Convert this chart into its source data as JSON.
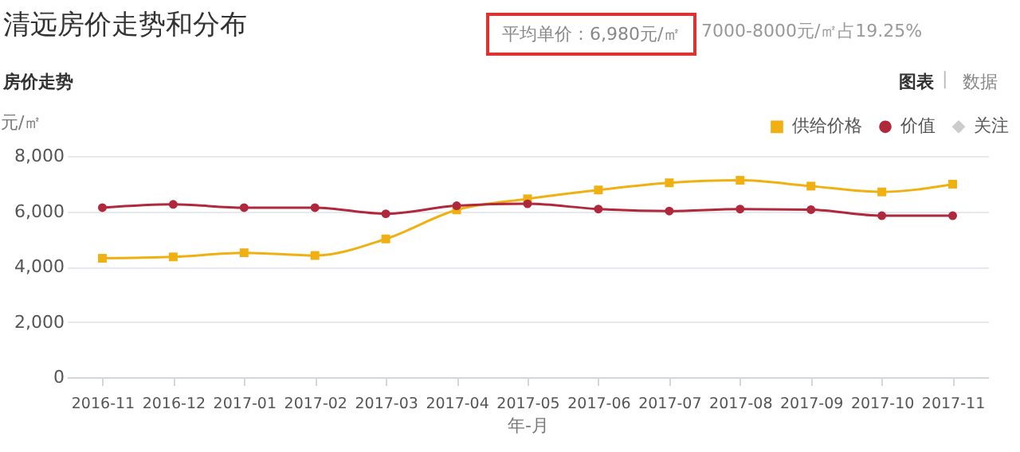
{
  "chart_data": {
    "type": "line",
    "title": "清远房价走势和分布",
    "annotations": [
      "平均单价：6,980元/㎡",
      "7000-8000元/㎡占19.25%",
      "房价走势",
      "图表",
      "|",
      "数据"
    ],
    "xlabel": "年-月",
    "ylabel": "元/㎡",
    "categories": [
      "2016-11",
      "2016-12",
      "2017-01",
      "2017-02",
      "2017-03",
      "2017-04",
      "2017-05",
      "2017-06",
      "2017-07",
      "2017-08",
      "2017-09",
      "2017-10",
      "2017-11"
    ],
    "series": [
      {
        "name": "供给价格",
        "color": "#f0b011",
        "marker": "square",
        "values": [
          4300,
          4350,
          4500,
          4400,
          5000,
          6050,
          6450,
          6770,
          7030,
          7120,
          6910,
          6700,
          6980
        ]
      },
      {
        "name": "价值",
        "color": "#b0283c",
        "marker": "circle",
        "values": [
          6130,
          6250,
          6130,
          6130,
          5910,
          6200,
          6270,
          6080,
          6010,
          6080,
          6060,
          5840,
          5840
        ]
      },
      {
        "name": "关注",
        "color": "#cccccc",
        "marker": "diamond",
        "values": [
          null,
          null,
          null,
          null,
          null,
          null,
          null,
          null,
          null,
          null,
          null,
          null,
          null
        ]
      }
    ],
    "ylim": [
      0,
      8000
    ],
    "yticks": [
      0,
      {
        "value": 2000,
        "label": "2,000"
      },
      {
        "value": 4000,
        "label": "4,000"
      },
      {
        "value": 6000,
        "label": "6,000"
      },
      {
        "value": 8000,
        "label": "8,000"
      }
    ],
    "grid": "y",
    "legend": "top right",
    "line_style": "solid"
  }
}
